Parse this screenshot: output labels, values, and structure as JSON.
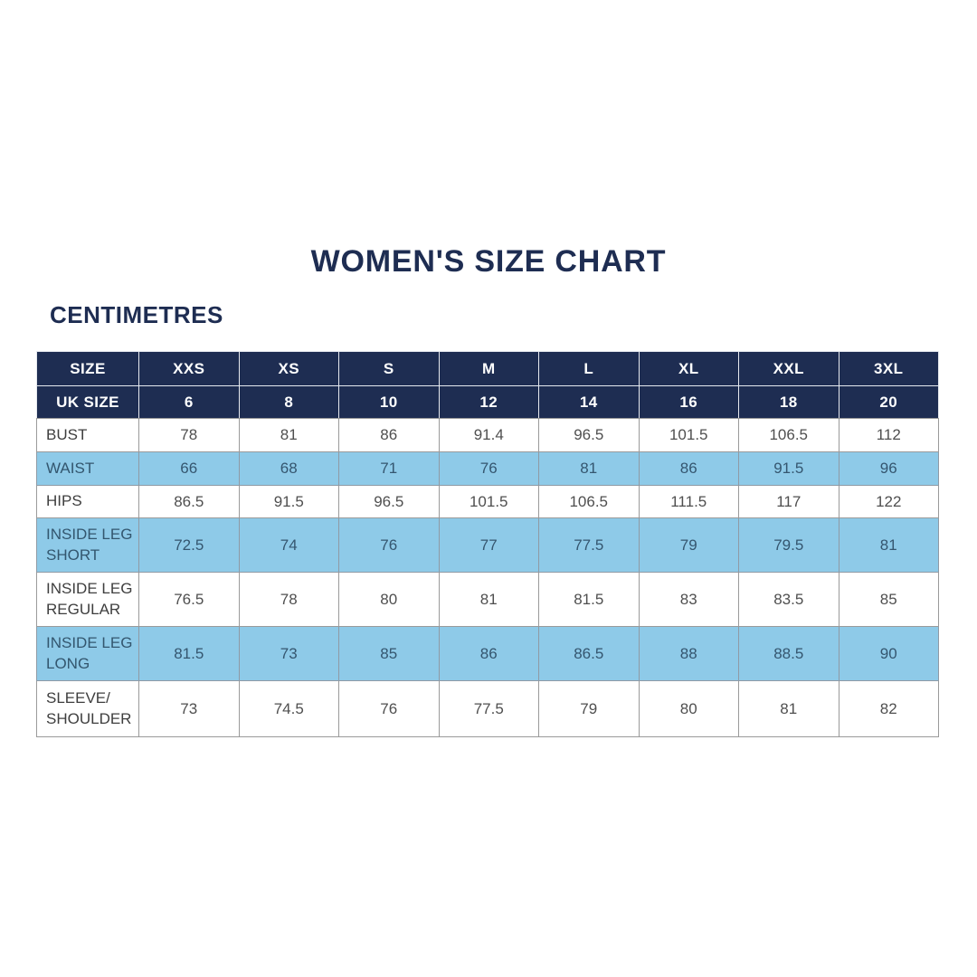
{
  "page": {
    "title": "WOMEN'S SIZE CHART",
    "subtitle": "CENTIMETRES"
  },
  "chart_data": {
    "type": "table",
    "title": "WOMEN'S SIZE CHART",
    "unit_label": "CENTIMETRES",
    "header": {
      "size_label": "SIZE",
      "sizes": [
        "XXS",
        "XS",
        "S",
        "M",
        "L",
        "XL",
        "XXL",
        "3XL"
      ],
      "uk_size_label": "UK SIZE",
      "uk_sizes": [
        "6",
        "8",
        "10",
        "12",
        "14",
        "16",
        "18",
        "20"
      ]
    },
    "rows": [
      {
        "label": "BUST",
        "highlight": false,
        "values": [
          "78",
          "81",
          "86",
          "91.4",
          "96.5",
          "101.5",
          "106.5",
          "112"
        ]
      },
      {
        "label": "WAIST",
        "highlight": true,
        "values": [
          "66",
          "68",
          "71",
          "76",
          "81",
          "86",
          "91.5",
          "96"
        ]
      },
      {
        "label": "HIPS",
        "highlight": false,
        "values": [
          "86.5",
          "91.5",
          "96.5",
          "101.5",
          "106.5",
          "111.5",
          "117",
          "122"
        ]
      },
      {
        "label": "INSIDE LEG SHORT",
        "highlight": true,
        "values": [
          "72.5",
          "74",
          "76",
          "77",
          "77.5",
          "79",
          "79.5",
          "81"
        ]
      },
      {
        "label": "INSIDE LEG REGULAR",
        "highlight": false,
        "values": [
          "76.5",
          "78",
          "80",
          "81",
          "81.5",
          "83",
          "83.5",
          "85"
        ]
      },
      {
        "label": "INSIDE LEG LONG",
        "highlight": true,
        "values": [
          "81.5",
          "73",
          "85",
          "86",
          "86.5",
          "88",
          "88.5",
          "90"
        ]
      },
      {
        "label": "SLEEVE/ SHOULDER",
        "highlight": false,
        "values": [
          "73",
          "74.5",
          "76",
          "77.5",
          "79",
          "80",
          "81",
          "82"
        ]
      }
    ],
    "colors": {
      "header_navy": "#1e2d52",
      "highlight_blue": "#8ecae8",
      "title_navy": "#1e2d52"
    }
  }
}
